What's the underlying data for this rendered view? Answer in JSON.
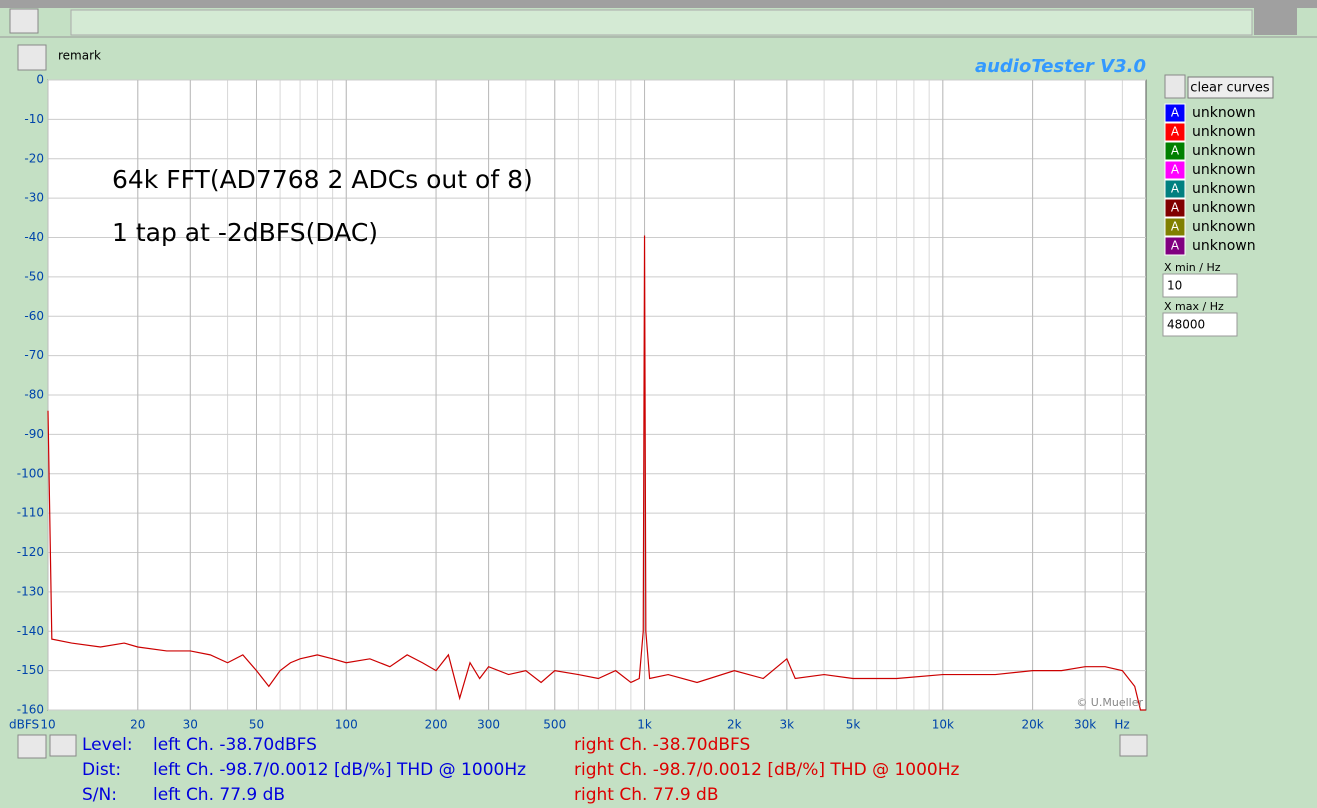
{
  "app": {
    "title": "audioTester  V3.0",
    "remark": "remark",
    "clear_button": "clear curves",
    "copyright": "© U.Mueller"
  },
  "legend": [
    {
      "icon": "A",
      "label": "unknown",
      "color": "#0000ff"
    },
    {
      "icon": "A",
      "label": "unknown",
      "color": "#ff0000"
    },
    {
      "icon": "A",
      "label": "unknown",
      "color": "#008000"
    },
    {
      "icon": "A",
      "label": "unknown",
      "color": "#ff00ff"
    },
    {
      "icon": "A",
      "label": "unknown",
      "color": "#008080"
    },
    {
      "icon": "A",
      "label": "unknown",
      "color": "#800000"
    },
    {
      "icon": "A",
      "label": "unknown",
      "color": "#808000"
    },
    {
      "icon": "A",
      "label": "unknown",
      "color": "#800080"
    }
  ],
  "controls": {
    "xmin_label": "X min / Hz",
    "xmax_label": "X max / Hz"
  },
  "chart_data": {
    "type": "line",
    "xscale": "log",
    "grid": true,
    "x_unit": "Hz",
    "y_unit": "dBFS",
    "annotations": [
      "64k FFT(AD7768 2 ADCs out of 8)",
      "1 tap at -2dBFS(DAC)"
    ],
    "xlim": [
      10,
      48000
    ],
    "ylim": [
      -160,
      0
    ],
    "xticks": [
      10,
      20,
      30,
      50,
      100,
      200,
      300,
      500,
      {
        "value": 1000,
        "label": "1k"
      },
      {
        "value": 2000,
        "label": "2k"
      },
      {
        "value": 3000,
        "label": "3k"
      },
      {
        "value": 5000,
        "label": "5k"
      },
      {
        "value": 10000,
        "label": "10k"
      },
      {
        "value": 20000,
        "label": "20k"
      },
      {
        "value": 30000,
        "label": "30k"
      }
    ],
    "yticks": [
      0,
      -10,
      -20,
      -30,
      -40,
      -50,
      -60,
      -70,
      -80,
      -90,
      -100,
      -110,
      -120,
      -130,
      -140,
      -150,
      -160
    ],
    "x": [
      10,
      10.3,
      12,
      15,
      18,
      20,
      25,
      30,
      35,
      40,
      45,
      50,
      55,
      60,
      65,
      70,
      80,
      90,
      100,
      120,
      140,
      160,
      180,
      200,
      220,
      240,
      260,
      280,
      300,
      350,
      400,
      450,
      500,
      600,
      700,
      800,
      900,
      960,
      990,
      1000,
      1010,
      1040,
      1200,
      1500,
      2000,
      2500,
      3000,
      3200,
      4000,
      5000,
      7000,
      10000,
      15000,
      20000,
      25000,
      30000,
      35000,
      40000,
      44000,
      46000,
      48000
    ],
    "series": [
      {
        "name": "right Ch.",
        "color": "#cc0000",
        "values": [
          -84,
          -142,
          -143,
          -144,
          -143,
          -144,
          -145,
          -145,
          -146,
          -148,
          -146,
          -150,
          -154,
          -150,
          -148,
          -147,
          -146,
          -147,
          -148,
          -147,
          -149,
          -146,
          -148,
          -150,
          -146,
          -157,
          -148,
          -152,
          -149,
          -151,
          -150,
          -153,
          -150,
          -151,
          -152,
          -150,
          -153,
          -152,
          -140,
          -39.5,
          -140,
          -152,
          -151,
          -153,
          -150,
          -152,
          -147,
          -152,
          -151,
          -152,
          -152,
          -151,
          -151,
          -150,
          -150,
          -149,
          -149,
          -150,
          -154,
          -160,
          -160
        ]
      }
    ]
  },
  "status": {
    "labels": [
      "Level:",
      "Dist:",
      "S/N:"
    ],
    "left": [
      "left Ch. -38.70dBFS",
      "left Ch. -98.7/0.0012 [dB/%] THD @ 1000Hz",
      "left Ch. 77.9 dB"
    ],
    "right": [
      "right Ch. -38.70dBFS",
      "right Ch. -98.7/0.0012 [dB/%] THD @ 1000Hz",
      "right Ch. 77.9 dB"
    ]
  }
}
